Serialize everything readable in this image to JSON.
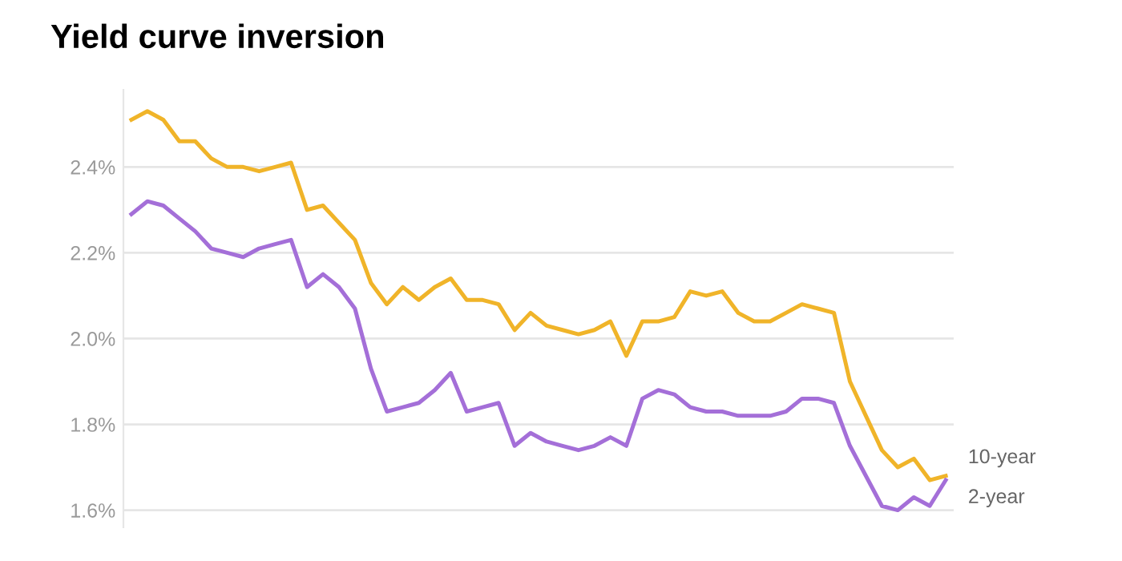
{
  "chart_data": {
    "type": "line",
    "title": "Yield curve inversion",
    "categories": [
      null,
      null,
      null,
      null,
      null,
      null,
      null,
      null,
      null,
      null,
      null,
      null,
      null,
      null,
      null,
      null,
      null,
      null,
      null,
      null,
      null,
      null,
      null,
      null,
      null,
      null,
      null,
      null,
      null,
      null,
      null,
      null,
      null,
      null,
      null,
      null,
      null,
      null,
      null,
      null,
      null,
      null,
      null,
      null,
      null,
      null,
      null,
      null,
      null,
      null,
      null,
      null
    ],
    "series": [
      {
        "name": "10-year",
        "color": "#f0b429",
        "values": [
          2.51,
          2.53,
          2.51,
          2.46,
          2.46,
          2.42,
          2.4,
          2.4,
          2.39,
          2.4,
          2.41,
          2.3,
          2.31,
          2.27,
          2.23,
          2.13,
          2.08,
          2.12,
          2.09,
          2.12,
          2.14,
          2.09,
          2.09,
          2.08,
          2.02,
          2.06,
          2.03,
          2.02,
          2.01,
          2.02,
          2.04,
          1.96,
          2.04,
          2.04,
          2.05,
          2.11,
          2.1,
          2.11,
          2.06,
          2.04,
          2.04,
          2.06,
          2.08,
          2.07,
          2.06,
          1.9,
          1.82,
          1.74,
          1.7,
          1.72,
          1.67,
          1.68
        ]
      },
      {
        "name": "2-year",
        "color": "#a46fd8",
        "values": [
          2.29,
          2.32,
          2.31,
          2.28,
          2.25,
          2.21,
          2.2,
          2.19,
          2.21,
          2.22,
          2.23,
          2.12,
          2.15,
          2.12,
          2.07,
          1.93,
          1.83,
          1.84,
          1.85,
          1.88,
          1.92,
          1.83,
          1.84,
          1.85,
          1.75,
          1.78,
          1.76,
          1.75,
          1.74,
          1.75,
          1.77,
          1.75,
          1.86,
          1.88,
          1.87,
          1.84,
          1.83,
          1.83,
          1.82,
          1.82,
          1.82,
          1.83,
          1.86,
          1.86,
          1.85,
          1.75,
          1.68,
          1.61,
          1.6,
          1.63,
          1.61,
          1.67
        ]
      }
    ],
    "yticks": [
      {
        "value": 1.6,
        "label": "1.6%"
      },
      {
        "value": 1.8,
        "label": "1.8%"
      },
      {
        "value": 2.0,
        "label": "2.0%"
      },
      {
        "value": 2.2,
        "label": "2.2%"
      },
      {
        "value": 2.4,
        "label": "2.4%"
      }
    ],
    "ylim": [
      1.56,
      2.58
    ],
    "grid": "y",
    "tick_labels": "y",
    "marker": "none",
    "line_style": "solid"
  }
}
